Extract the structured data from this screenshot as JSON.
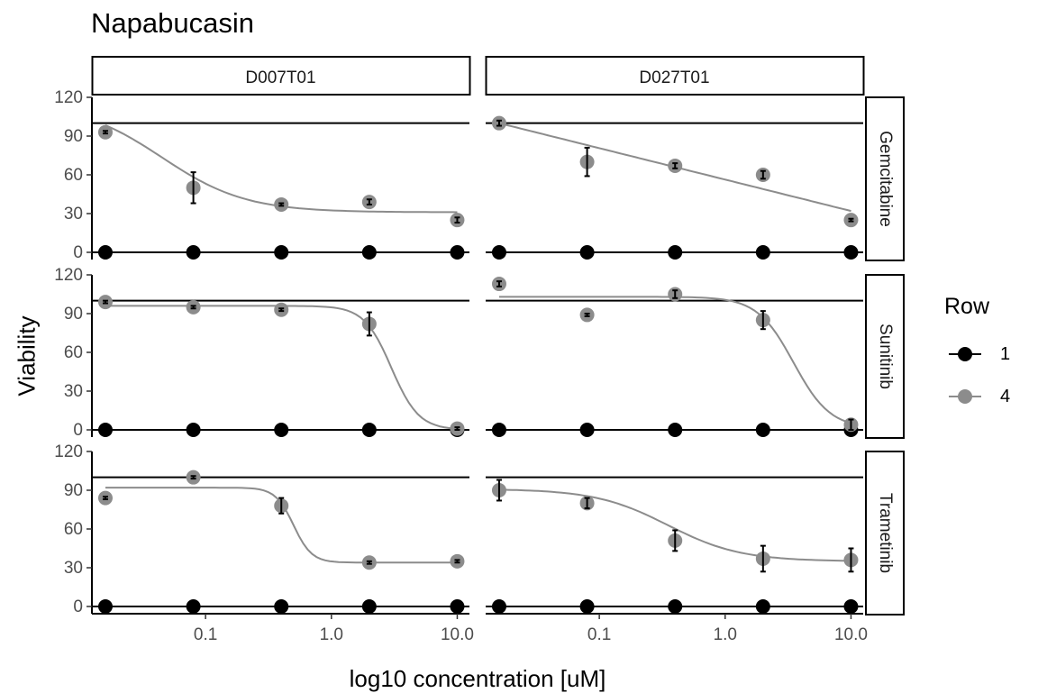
{
  "chart_data": {
    "type": "scatter",
    "title": "Napabucasin",
    "xlabel": "log10 concentration [uM]",
    "ylabel": "Viability",
    "x_scale": "log",
    "x_ticks": [
      0.1,
      1.0,
      10.0
    ],
    "x_tick_labels": [
      "0.1",
      "1.0",
      "10.0"
    ],
    "y_ticks": [
      0,
      30,
      60,
      90,
      120
    ],
    "y_tick_labels": [
      "0",
      "30",
      "60",
      "90",
      "120"
    ],
    "ylim": [
      -4,
      125
    ],
    "xlim": [
      0.0125,
      12.5
    ],
    "reference_line": 100,
    "columns": [
      "D007T01",
      "D027T01"
    ],
    "rows": [
      "Gemcitabine",
      "Sunitinib",
      "Trametinib"
    ],
    "concentrations": [
      0.016,
      0.08,
      0.4,
      2.0,
      10.0
    ],
    "legend": {
      "title": "Row",
      "placement": "right",
      "items": [
        {
          "label": "1",
          "color": "#000000"
        },
        {
          "label": "4",
          "color": "#8c8c8c"
        }
      ]
    },
    "panels": [
      {
        "column": "D007T01",
        "row": "Gemcitabine",
        "series_1": [
          0,
          0,
          0,
          0,
          0
        ],
        "series_4": [
          93,
          50,
          37,
          39,
          25
        ],
        "error": [
          1,
          12,
          1,
          2,
          2
        ],
        "fit": {
          "top": 116,
          "bottom": 31,
          "ec50": 0.045,
          "hill": 1.3
        }
      },
      {
        "column": "D027T01",
        "row": "Gemcitabine",
        "series_1": [
          0,
          0,
          0,
          0,
          0
        ],
        "series_4": [
          100,
          70,
          67,
          60,
          25
        ],
        "error": [
          2,
          11,
          2,
          3,
          1
        ],
        "fit": {
          "linear": [
            100,
            32
          ]
        }
      },
      {
        "column": "D007T01",
        "row": "Sunitinib",
        "series_1": [
          0,
          0,
          0,
          0,
          0
        ],
        "series_4": [
          99,
          95,
          93,
          82,
          1
        ],
        "error": [
          1,
          1,
          1,
          9,
          1
        ],
        "fit": {
          "top": 96,
          "bottom": 0,
          "ec50": 3.0,
          "hill": 4.0
        }
      },
      {
        "column": "D027T01",
        "row": "Sunitinib",
        "series_1": [
          0,
          0,
          0,
          0,
          0
        ],
        "series_4": [
          113,
          89,
          105,
          85,
          4
        ],
        "error": [
          2,
          1,
          3,
          7,
          4
        ],
        "fit": {
          "top": 103,
          "bottom": 1,
          "ec50": 3.5,
          "hill": 3.0
        }
      },
      {
        "column": "D007T01",
        "row": "Trametinib",
        "series_1": [
          0,
          0,
          0,
          0,
          0
        ],
        "series_4": [
          84,
          100,
          78,
          34,
          35
        ],
        "error": [
          1,
          1,
          6,
          1,
          1
        ],
        "fit": {
          "top": 92,
          "bottom": 34,
          "ec50": 0.5,
          "hill": 6.0
        }
      },
      {
        "column": "D027T01",
        "row": "Trametinib",
        "series_1": [
          0,
          0,
          0,
          0,
          0
        ],
        "series_4": [
          90,
          80,
          51,
          37,
          36
        ],
        "error": [
          8,
          4,
          8,
          10,
          9
        ],
        "fit": {
          "top": 91,
          "bottom": 35,
          "ec50": 0.35,
          "hill": 1.5
        }
      }
    ]
  }
}
